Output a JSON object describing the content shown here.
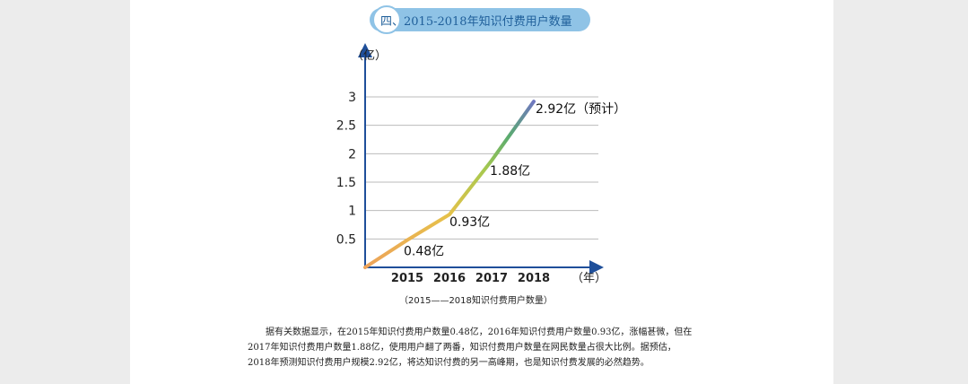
{
  "heading": {
    "prefix": "四、",
    "text": "2015-2018年知识付费用户数量"
  },
  "chart_data": {
    "type": "line",
    "title": "",
    "ylabel": "（亿）",
    "xlabel": "（年）",
    "categories": [
      "2015",
      "2016",
      "2017",
      "2018"
    ],
    "x_origin": 2014,
    "series": [
      {
        "x": [
          2014,
          2015,
          2016,
          2017,
          2018
        ],
        "y": [
          0,
          0.48,
          0.93,
          1.88,
          2.92
        ]
      }
    ],
    "ylim": [
      0,
      3
    ],
    "yticks": [
      "0.5",
      "1",
      "1.5",
      "2",
      "2.5",
      "3"
    ],
    "ytick_values": [
      0.5,
      1,
      1.5,
      2,
      2.5,
      3
    ],
    "data_labels": [
      "0.48亿",
      "0.93亿",
      "1.88亿",
      "2.92亿（预计）"
    ],
    "grid": true,
    "colors": {
      "axis": "#1f4f9a",
      "grid": "#bbbbbb",
      "gradient_start": "#eda35a",
      "gradient_mid": "#a7c94f",
      "gradient_end": "#6f77c0"
    }
  },
  "caption": "（2015——2018知识付费用户数量）",
  "paragraph": "据有关数据显示，在2015年知识付费用户数量0.48亿，2016年知识付费用户数量0.93亿，涨幅甚微，但在2017年知识付费用户数量1.88亿，使用用户翻了两番，知识付费用户数量在网民数量占很大比例。据预估，2018年预测知识付费用户规模2.92亿，将达知识付费的另一高峰期，也是知识付费发展的必然趋势。"
}
